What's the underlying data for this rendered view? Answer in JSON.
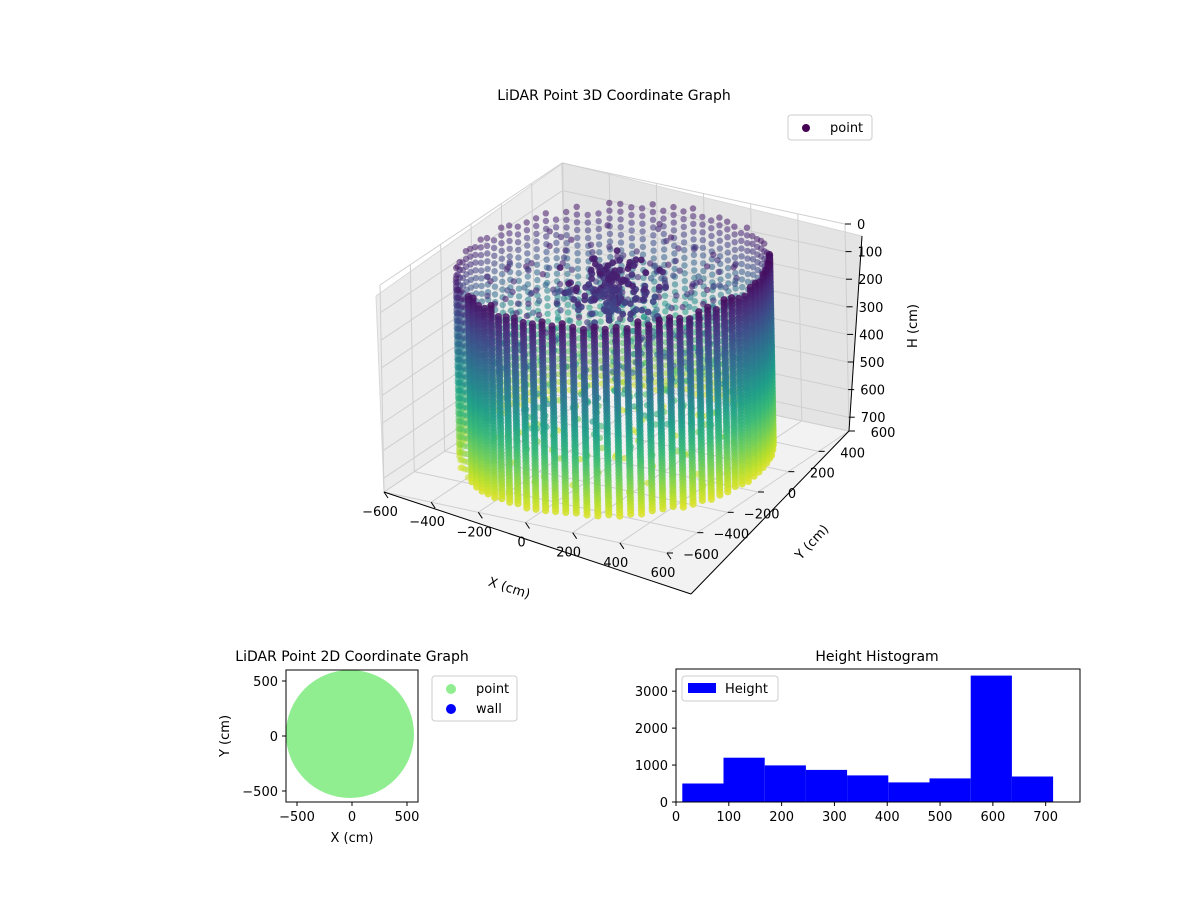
{
  "chart_data": [
    {
      "type": "scatter3d",
      "title": "LiDAR Point 3D Coordinate Graph",
      "xlabel": "X (cm)",
      "ylabel": "Y (cm)",
      "zlabel": "H (cm)",
      "xlim": [
        -600,
        600
      ],
      "ylim": [
        -600,
        600
      ],
      "zlim": [
        0,
        750
      ],
      "z_inverted": true,
      "xticks": [
        "−600",
        "−400",
        "−200",
        "0",
        "200",
        "400",
        "600"
      ],
      "yticks": [
        "−600",
        "−400",
        "−200",
        "0",
        "200",
        "400",
        "600"
      ],
      "zticks": [
        "0",
        "100",
        "200",
        "300",
        "400",
        "500",
        "600",
        "700"
      ],
      "legend": {
        "position": "top-right",
        "entries": [
          {
            "label": "point",
            "color": "#440154"
          }
        ]
      },
      "colormap": "viridis",
      "grid": true
    },
    {
      "type": "scatter",
      "title": "LiDAR Point 2D Coordinate Graph",
      "xlabel": "X (cm)",
      "ylabel": "Y (cm)",
      "xlim": [
        -600,
        600
      ],
      "ylim": [
        -600,
        600
      ],
      "xticks": [
        "−500",
        "0",
        "500"
      ],
      "yticks": [
        "500",
        "0",
        "−500"
      ],
      "series": [
        {
          "name": "point",
          "color": "#90ee90",
          "shape": "disk",
          "center": [
            0,
            0
          ],
          "radius": 560
        },
        {
          "name": "wall",
          "color": "#0000ff",
          "points": []
        }
      ],
      "legend": {
        "position": "outside-right",
        "entries": [
          {
            "label": "point",
            "color": "#90ee90"
          },
          {
            "label": "wall",
            "color": "#0000ff"
          }
        ]
      }
    },
    {
      "type": "bar",
      "title": "Height Histogram",
      "xlabel": "",
      "ylabel": "",
      "bin_edges": [
        12,
        90,
        168,
        246,
        324,
        402,
        480,
        558,
        636,
        714
      ],
      "values": [
        500,
        1200,
        990,
        870,
        720,
        530,
        640,
        3420,
        690
      ],
      "xlim": [
        0,
        765
      ],
      "ylim": [
        0,
        3600
      ],
      "xticks": [
        "0",
        "100",
        "200",
        "300",
        "400",
        "500",
        "600",
        "700"
      ],
      "yticks": [
        "0",
        "1000",
        "2000",
        "3000"
      ],
      "color": "#0000ff",
      "legend": {
        "position": "top-left",
        "entries": [
          {
            "label": "Height",
            "color": "#0000ff"
          }
        ]
      }
    }
  ]
}
